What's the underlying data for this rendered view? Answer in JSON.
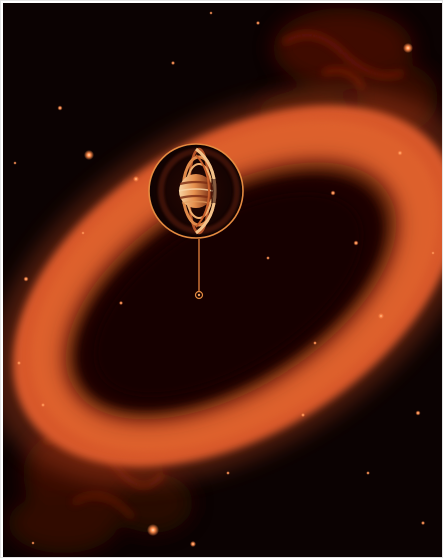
{
  "image": {
    "subject": "space-image",
    "colors": {
      "background": "#0b0202",
      "ring_outer": "#d8542a",
      "ring_inner": "#140303",
      "nebula": "#5a1008",
      "star": "#ff8a4a",
      "inset_border": "#e48a40",
      "planet_light": "#f3c28a",
      "planet_dark": "#7a2a12",
      "leader_line": "#d9783a"
    },
    "icons": {
      "inset": "planet-with-rings-icon",
      "pointer": "target-marker-icon"
    }
  }
}
